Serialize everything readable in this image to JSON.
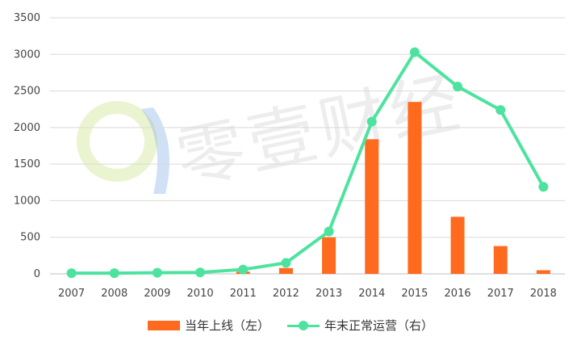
{
  "watermark": {
    "text": "零壹财经"
  },
  "colors": {
    "bar": "#FF6A1F",
    "line": "#4DE39E",
    "grid": "#D9D9D9",
    "axis": "#BFBFBF"
  },
  "legend": {
    "bar_label": "当年上线（左）",
    "line_label": "年末正常运营（右）"
  },
  "chart_data": {
    "type": "bar+line",
    "categories": [
      "2007",
      "2008",
      "2009",
      "2010",
      "2011",
      "2012",
      "2013",
      "2014",
      "2015",
      "2016",
      "2017",
      "2018"
    ],
    "ylim": [
      0,
      3500
    ],
    "yticks": [
      0,
      500,
      1000,
      1500,
      2000,
      2500,
      3000,
      3500
    ],
    "grid": true,
    "legend_position": "bottom",
    "series": [
      {
        "name": "当年上线（左）",
        "type": "bar",
        "values": [
          0,
          0,
          0,
          0,
          30,
          80,
          500,
          1840,
          2350,
          780,
          380,
          50
        ]
      },
      {
        "name": "年末正常运营（右）",
        "type": "line",
        "values": [
          10,
          10,
          15,
          20,
          60,
          150,
          580,
          2080,
          3030,
          2560,
          2240,
          1190
        ]
      }
    ]
  }
}
